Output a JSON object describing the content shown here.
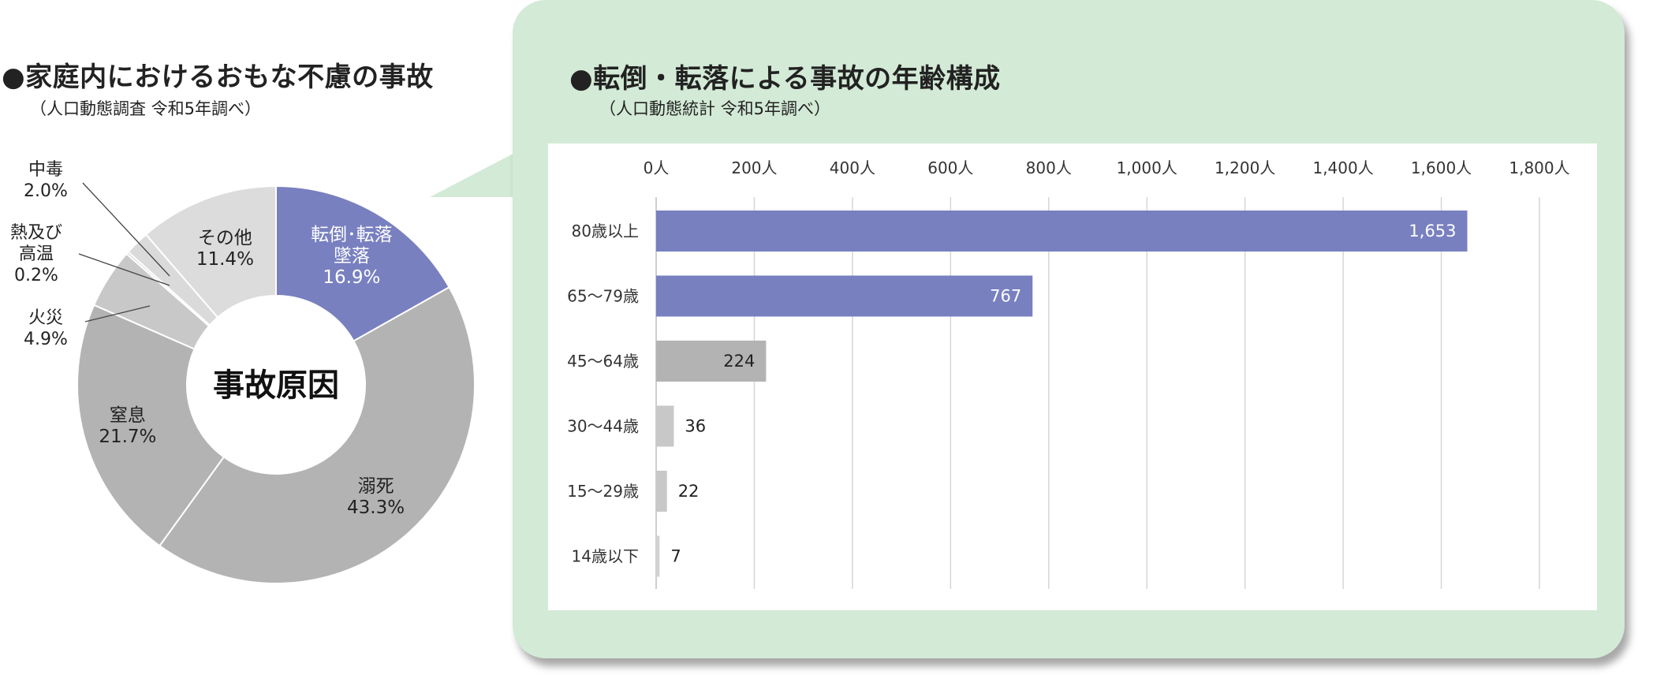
{
  "charts": {
    "pie": {
      "title": "●家庭内におけるおもな不慮の事故",
      "subtitle": "（人口動態調査 令和5年調べ）"
    },
    "bar": {
      "title": "●転倒・転落による事故の年齢構成",
      "subtitle": "（人口動態統計 令和5年調べ）"
    }
  },
  "chart_data": [
    {
      "type": "pie",
      "variant": "donut",
      "center_label": "事故原因",
      "slices": [
        {
          "label": "転倒･転落\n墜落",
          "value": 16.9,
          "value_text": "16.9%",
          "color": "#7880c0",
          "text_color": "#ffffff"
        },
        {
          "label": "溺死",
          "value": 43.3,
          "value_text": "43.3%",
          "color": "#b3b3b3",
          "text_color": "#222222"
        },
        {
          "label": "窒息",
          "value": 21.7,
          "value_text": "21.7%",
          "color": "#b3b3b3",
          "text_color": "#222222"
        },
        {
          "label": "火災",
          "value": 4.9,
          "value_text": "4.9%",
          "color": "#c8c8c8",
          "text_color": "#222222"
        },
        {
          "label": "熱及び\n高温",
          "value": 0.2,
          "value_text": "0.2%",
          "color": "#d4d4d4",
          "text_color": "#222222"
        },
        {
          "label": "中毒",
          "value": 2.0,
          "value_text": "2.0%",
          "color": "#dadada",
          "text_color": "#222222"
        },
        {
          "label": "その他",
          "value": 11.4,
          "value_text": "11.4%",
          "color": "#dcdcdc",
          "text_color": "#222222"
        }
      ]
    },
    {
      "type": "bar",
      "orientation": "horizontal",
      "categories": [
        "80歳以上",
        "65〜79歳",
        "45〜64歳",
        "30〜44歳",
        "15〜29歳",
        "14歳以下"
      ],
      "values": [
        1653,
        767,
        224,
        36,
        22,
        7
      ],
      "value_labels": [
        "1,653",
        "767",
        "224",
        "36",
        "22",
        "7"
      ],
      "colors": [
        "#7880c0",
        "#7880c0",
        "#b3b3b3",
        "#c8c8c8",
        "#c8c8c8",
        "#d2d2d2"
      ],
      "xlim": [
        0,
        1800
      ],
      "xticks": [
        0,
        200,
        400,
        600,
        800,
        1000,
        1200,
        1400,
        1600,
        1800
      ],
      "xtick_labels": [
        "0人",
        "200人",
        "400人",
        "600人",
        "800人",
        "1,000人",
        "1,200人",
        "1,400人",
        "1,600人",
        "1,800人"
      ],
      "grid": true,
      "xaxis_position": "top"
    }
  ]
}
